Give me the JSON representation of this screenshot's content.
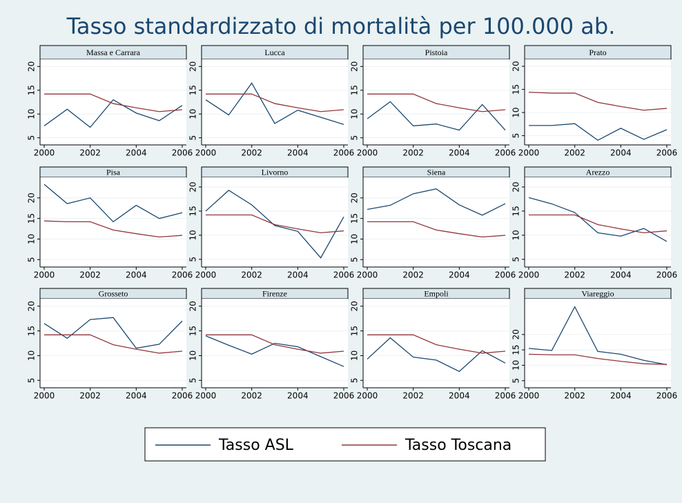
{
  "title": "Tasso standardizzato di mortalità per 100.000 ab.",
  "chart_data": [
    {
      "type": "line",
      "title": "Massa e Carrara",
      "x": [
        2000,
        2001,
        2002,
        2003,
        2004,
        2005,
        2006
      ],
      "xlim": [
        2000,
        2006
      ],
      "xticks": [
        2000,
        2002,
        2004,
        2006
      ],
      "ylim": [
        3.5,
        21.5
      ],
      "yticks": [
        5,
        10,
        15,
        20
      ],
      "series": [
        {
          "name": "Tasso ASL",
          "color": "#1a476f",
          "values": [
            7.5,
            11,
            7.2,
            13,
            10.2,
            8.6,
            11.8
          ]
        },
        {
          "name": "Tasso Toscana",
          "color": "#90353b",
          "values": [
            14.2,
            14.2,
            14.2,
            12.2,
            11.3,
            10.5,
            10.9
          ]
        }
      ]
    },
    {
      "type": "line",
      "title": "Lucca",
      "x": [
        2000,
        2001,
        2002,
        2003,
        2004,
        2005,
        2006
      ],
      "xlim": [
        2000,
        2006
      ],
      "xticks": [
        2000,
        2002,
        2004,
        2006
      ],
      "ylim": [
        3.5,
        21.5
      ],
      "yticks": [
        5,
        10,
        15,
        20
      ],
      "series": [
        {
          "name": "Tasso ASL",
          "color": "#1a476f",
          "values": [
            13,
            9.8,
            16.5,
            8,
            10.8,
            9.3,
            7.8
          ]
        },
        {
          "name": "Tasso Toscana",
          "color": "#90353b",
          "values": [
            14.2,
            14.2,
            14.2,
            12.2,
            11.3,
            10.5,
            10.9
          ]
        }
      ]
    },
    {
      "type": "line",
      "title": "Pistoia",
      "x": [
        2000,
        2001,
        2002,
        2003,
        2004,
        2005,
        2006
      ],
      "xlim": [
        2000,
        2006
      ],
      "xticks": [
        2000,
        2002,
        2004,
        2006
      ],
      "ylim": [
        3.5,
        21.5
      ],
      "yticks": [
        5,
        10,
        15,
        20
      ],
      "series": [
        {
          "name": "Tasso ASL",
          "color": "#1a476f",
          "values": [
            9,
            12.6,
            7.5,
            7.9,
            6.6,
            12,
            6.6
          ]
        },
        {
          "name": "Tasso Toscana",
          "color": "#90353b",
          "values": [
            14.2,
            14.2,
            14.2,
            12.2,
            11.3,
            10.5,
            10.9
          ]
        }
      ]
    },
    {
      "type": "line",
      "title": "Prato",
      "x": [
        2000,
        2001,
        2002,
        2003,
        2004,
        2005,
        2006
      ],
      "xlim": [
        2000,
        2006
      ],
      "xticks": [
        2000,
        2002,
        2004,
        2006
      ],
      "ylim": [
        3,
        21.5
      ],
      "yticks": [
        5,
        10,
        15,
        20
      ],
      "series": [
        {
          "name": "Tasso ASL",
          "color": "#1a476f",
          "values": [
            7.2,
            7.2,
            7.6,
            4,
            6.6,
            4.2,
            6.3
          ]
        },
        {
          "name": "Tasso Toscana",
          "color": "#90353b",
          "values": [
            14.4,
            14.2,
            14.2,
            12.2,
            11.3,
            10.5,
            10.9
          ]
        }
      ]
    },
    {
      "type": "line",
      "title": "Pisa",
      "x": [
        2000,
        2001,
        2002,
        2003,
        2004,
        2005,
        2006
      ],
      "xlim": [
        2000,
        2006
      ],
      "xticks": [
        2000,
        2002,
        2004,
        2006
      ],
      "ylim": [
        3.2,
        25
      ],
      "yticks": [
        5,
        10,
        15,
        20
      ],
      "series": [
        {
          "name": "Tasso ASL",
          "color": "#1a476f",
          "values": [
            23.3,
            18.6,
            20,
            14.2,
            18.2,
            15,
            16.4
          ]
        },
        {
          "name": "Tasso Toscana",
          "color": "#90353b",
          "values": [
            14.4,
            14.2,
            14.2,
            12.2,
            11.3,
            10.5,
            10.9
          ]
        }
      ]
    },
    {
      "type": "line",
      "title": "Livorno",
      "x": [
        2000,
        2001,
        2002,
        2003,
        2004,
        2005,
        2006
      ],
      "xlim": [
        2000,
        2006
      ],
      "xticks": [
        2000,
        2002,
        2004,
        2006
      ],
      "ylim": [
        3.4,
        22
      ],
      "yticks": [
        5,
        10,
        15,
        20
      ],
      "series": [
        {
          "name": "Tasso ASL",
          "color": "#1a476f",
          "values": [
            15,
            19.3,
            16.3,
            12,
            10.8,
            5.3,
            13.8
          ]
        },
        {
          "name": "Tasso Toscana",
          "color": "#90353b",
          "values": [
            14.2,
            14.2,
            14.2,
            12.2,
            11.3,
            10.5,
            10.9
          ]
        }
      ]
    },
    {
      "type": "line",
      "title": "Siena",
      "x": [
        2000,
        2001,
        2002,
        2003,
        2004,
        2005,
        2006
      ],
      "xlim": [
        2000,
        2006
      ],
      "xticks": [
        2000,
        2002,
        2004,
        2006
      ],
      "ylim": [
        3.2,
        25
      ],
      "yticks": [
        5,
        10,
        15,
        20
      ],
      "series": [
        {
          "name": "Tasso ASL",
          "color": "#1a476f",
          "values": [
            17.2,
            18.2,
            21,
            22.2,
            18.3,
            15.8,
            18.6
          ]
        },
        {
          "name": "Tasso Toscana",
          "color": "#90353b",
          "values": [
            14.2,
            14.2,
            14.2,
            12.2,
            11.3,
            10.5,
            10.9
          ]
        }
      ]
    },
    {
      "type": "line",
      "title": "Arezzo",
      "x": [
        2000,
        2001,
        2002,
        2003,
        2004,
        2005,
        2006
      ],
      "xlim": [
        2000,
        2006
      ],
      "xticks": [
        2000,
        2002,
        2004,
        2006
      ],
      "ylim": [
        3.4,
        22
      ],
      "yticks": [
        5,
        10,
        15,
        20
      ],
      "series": [
        {
          "name": "Tasso ASL",
          "color": "#1a476f",
          "values": [
            17.8,
            16.5,
            14.7,
            10.5,
            9.8,
            11.4,
            8.7
          ]
        },
        {
          "name": "Tasso Toscana",
          "color": "#90353b",
          "values": [
            14.2,
            14.2,
            14.2,
            12.2,
            11.3,
            10.5,
            10.9
          ]
        }
      ]
    },
    {
      "type": "line",
      "title": "Grosseto",
      "x": [
        2000,
        2001,
        2002,
        2003,
        2004,
        2005,
        2006
      ],
      "xlim": [
        2000,
        2006
      ],
      "xticks": [
        2000,
        2002,
        2004,
        2006
      ],
      "ylim": [
        3.5,
        21.5
      ],
      "yticks": [
        5,
        10,
        15,
        20
      ],
      "series": [
        {
          "name": "Tasso ASL",
          "color": "#1a476f",
          "values": [
            16.5,
            13.5,
            17.3,
            17.7,
            11.5,
            12.3,
            17
          ]
        },
        {
          "name": "Tasso Toscana",
          "color": "#90353b",
          "values": [
            14.2,
            14.2,
            14.2,
            12.2,
            11.3,
            10.5,
            10.9
          ]
        }
      ]
    },
    {
      "type": "line",
      "title": "Firenze",
      "x": [
        2000,
        2001,
        2002,
        2003,
        2004,
        2005,
        2006
      ],
      "xlim": [
        2000,
        2006
      ],
      "xticks": [
        2000,
        2002,
        2004,
        2006
      ],
      "ylim": [
        3.5,
        21.5
      ],
      "yticks": [
        5,
        10,
        15,
        20
      ],
      "series": [
        {
          "name": "Tasso ASL",
          "color": "#1a476f",
          "values": [
            14,
            12.1,
            10.3,
            12.5,
            11.8,
            9.8,
            7.8
          ]
        },
        {
          "name": "Tasso Toscana",
          "color": "#90353b",
          "values": [
            14.2,
            14.2,
            14.2,
            12.2,
            11.3,
            10.5,
            10.9
          ]
        }
      ]
    },
    {
      "type": "line",
      "title": "Empoli",
      "x": [
        2000,
        2001,
        2002,
        2003,
        2004,
        2005,
        2006
      ],
      "xlim": [
        2000,
        2006
      ],
      "xticks": [
        2000,
        2002,
        2004,
        2006
      ],
      "ylim": [
        3.5,
        21.5
      ],
      "yticks": [
        5,
        10,
        15,
        20
      ],
      "series": [
        {
          "name": "Tasso ASL",
          "color": "#1a476f",
          "values": [
            9.3,
            13.6,
            9.7,
            9.1,
            6.8,
            11,
            8.5
          ]
        },
        {
          "name": "Tasso Toscana",
          "color": "#90353b",
          "values": [
            14.2,
            14.2,
            14.2,
            12.2,
            11.3,
            10.5,
            10.9
          ]
        }
      ]
    },
    {
      "type": "line",
      "title": "Viareggio",
      "x": [
        2000,
        2001,
        2002,
        2003,
        2004,
        2005,
        2006
      ],
      "xlim": [
        2000,
        2006
      ],
      "xticks": [
        2000,
        2002,
        2004,
        2006
      ],
      "ylim": [
        2.7,
        31.6
      ],
      "yticks": [
        5,
        10,
        15,
        20
      ],
      "series": [
        {
          "name": "Tasso ASL",
          "color": "#1a476f",
          "values": [
            15.5,
            14.8,
            29,
            14.5,
            13.6,
            11.6,
            10.2
          ]
        },
        {
          "name": "Tasso Toscana",
          "color": "#90353b",
          "values": [
            13.6,
            13.4,
            13.4,
            12.2,
            11.3,
            10.5,
            10.3
          ]
        }
      ]
    }
  ]
}
